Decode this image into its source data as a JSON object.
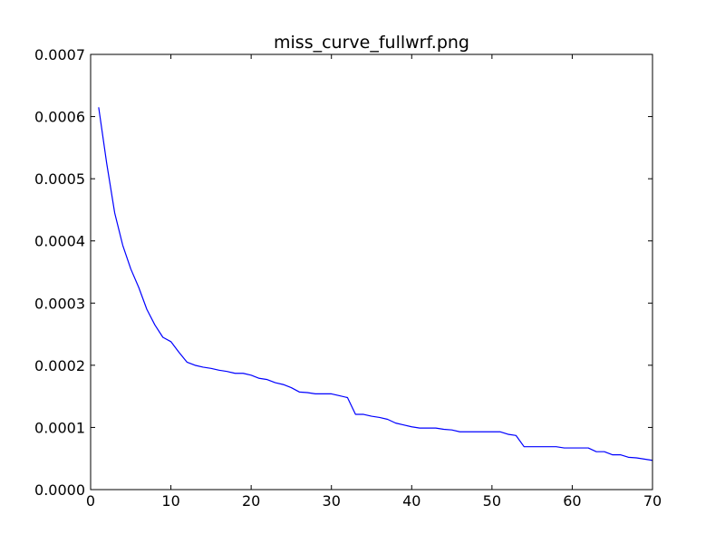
{
  "chart_data": {
    "type": "line",
    "title": "miss_curve_fullwrf.png",
    "xlabel": "",
    "ylabel": "",
    "xlim": [
      0,
      70
    ],
    "ylim": [
      0,
      0.0007
    ],
    "grid": false,
    "legend": "none",
    "x_ticks": [
      0,
      10,
      20,
      30,
      40,
      50,
      60,
      70
    ],
    "x_tick_labels": [
      "0",
      "10",
      "20",
      "30",
      "40",
      "50",
      "60",
      "70"
    ],
    "y_ticks": [
      0,
      0.0001,
      0.0002,
      0.0003,
      0.0004,
      0.0005,
      0.0006,
      0.0007
    ],
    "y_tick_labels": [
      "0.0000",
      "0.0001",
      "0.0002",
      "0.0003",
      "0.0004",
      "0.0005",
      "0.0006",
      "0.0007"
    ],
    "series": [
      {
        "color": "#0000ff",
        "x": [
          1,
          2,
          3,
          4,
          5,
          6,
          7,
          8,
          9,
          10,
          11,
          12,
          13,
          14,
          15,
          16,
          17,
          18,
          19,
          20,
          21,
          22,
          23,
          24,
          25,
          26,
          27,
          28,
          29,
          30,
          31,
          32,
          33,
          34,
          35,
          36,
          37,
          38,
          39,
          40,
          41,
          42,
          43,
          44,
          45,
          46,
          47,
          48,
          49,
          50,
          51,
          52,
          53,
          54,
          55,
          56,
          57,
          58,
          59,
          60,
          61,
          62,
          63,
          64,
          65,
          66,
          67,
          68,
          69,
          70
        ],
        "y": [
          0.000615,
          0.000525,
          0.000445,
          0.000393,
          0.000355,
          0.000325,
          0.00029,
          0.000265,
          0.000245,
          0.000238,
          0.000221,
          0.000205,
          0.0002,
          0.000197,
          0.000195,
          0.000192,
          0.00019,
          0.000187,
          0.000187,
          0.000184,
          0.000179,
          0.000177,
          0.000172,
          0.000169,
          0.000164,
          0.000157,
          0.000156,
          0.000154,
          0.000154,
          0.000154,
          0.000151,
          0.000148,
          0.000121,
          0.000121,
          0.000118,
          0.000116,
          0.000113,
          0.000107,
          0.000104,
          0.000101,
          9.9e-05,
          9.9e-05,
          9.9e-05,
          9.7e-05,
          9.6e-05,
          9.3e-05,
          9.3e-05,
          9.3e-05,
          9.3e-05,
          9.3e-05,
          9.3e-05,
          8.9e-05,
          8.7e-05,
          6.9e-05,
          6.9e-05,
          6.9e-05,
          6.9e-05,
          6.9e-05,
          6.7e-05,
          6.7e-05,
          6.7e-05,
          6.7e-05,
          6.1e-05,
          6.1e-05,
          5.6e-05,
          5.6e-05,
          5.2e-05,
          5.1e-05,
          4.9e-05,
          4.7e-05
        ]
      }
    ]
  }
}
